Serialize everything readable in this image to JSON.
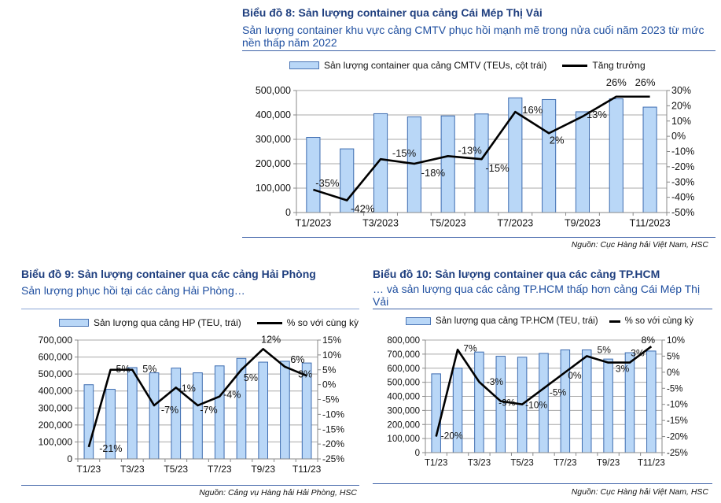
{
  "charts": {
    "c8": {
      "title": "Biểu đồ 8: Sản lượng container qua cảng Cái Mép Thị Vải",
      "subtitle": "Sản lượng container khu vực cảng CMTV phục hồi mạnh mẽ trong nửa cuối năm 2023 từ mức nền thấp năm 2022",
      "legend_bar": "Sản lượng container qua cảng CMTV (TEUs, cột trái)",
      "legend_line": "Tăng trưởng",
      "source": "Nguồn: Cục Hàng hải Việt Nam, HSC"
    },
    "c9": {
      "title": "Biểu đồ 9: Sản lượng container qua các cảng Hải Phòng",
      "subtitle": "Sản lượng phục hồi tại các cảng Hải Phòng…",
      "legend_bar": "Sản lượng qua cảng HP (TEU, trái)",
      "legend_line": "% so với cùng kỳ",
      "source": "Nguồn: Cảng vụ Hàng hải Hải Phòng, HSC"
    },
    "c10": {
      "title": "Biểu đồ 10: Sản lượng container qua các cảng  TP.HCM",
      "subtitle": "… và sản lượng qua các cảng  TP.HCM thấp hơn  cảng Cái Mép Thị Vải",
      "legend_bar": "Sản lượng qua cảng TP.HCM (TEU, trái)",
      "legend_line": "% so với cùng kỳ",
      "source": "Nguồn: Cục Hàng hải Việt Nam, HSC"
    }
  },
  "chart_data": [
    {
      "type": "bar",
      "title": "Biểu đồ 8: Sản lượng container qua cảng Cái Mép Thị Vải",
      "categories": [
        "T1/2023",
        "T2/2023",
        "T3/2023",
        "T4/2023",
        "T5/2023",
        "T6/2023",
        "T7/2023",
        "T8/2023",
        "T9/2023",
        "T10/2023",
        "T11/2023"
      ],
      "x_tick_labels": [
        "T1/2023",
        "",
        "T3/2023",
        "",
        "T5/2023",
        "",
        "T7/2023",
        "",
        "T9/2023",
        "",
        "T11/2023"
      ],
      "series": [
        {
          "name": "Sản lượng container qua cảng CMTV (TEUs, cột trái)",
          "type": "bar",
          "axis": "left",
          "values": [
            308000,
            261000,
            405000,
            392000,
            396000,
            404000,
            470000,
            463000,
            413000,
            466000,
            432000
          ]
        },
        {
          "name": "Tăng trưởng",
          "type": "line",
          "axis": "right",
          "values": [
            -35,
            -42,
            -15,
            -18,
            -13,
            -15,
            16,
            2,
            13,
            26,
            26
          ],
          "data_labels": [
            "-35%",
            "-42%",
            "-15%",
            "-18%",
            "-13%",
            "-15%",
            "16%",
            "2%",
            "13%",
            "26%",
            "26%"
          ]
        }
      ],
      "ylim_left": [
        0,
        500000
      ],
      "yticks_left": [
        "0",
        "100,000",
        "200,000",
        "300,000",
        "400,000",
        "500,000"
      ],
      "ylim_right": [
        -50,
        30
      ],
      "yticks_right": [
        "-50%",
        "-40%",
        "-30%",
        "-20%",
        "-10%",
        "0%",
        "10%",
        "20%",
        "30%"
      ],
      "grid": true,
      "legend": "top"
    },
    {
      "type": "bar",
      "title": "Biểu đồ 9: Sản lượng container qua các cảng Hải Phòng",
      "categories": [
        "T1/23",
        "T2/23",
        "T3/23",
        "T4/23",
        "T5/23",
        "T6/23",
        "T7/23",
        "T8/23",
        "T9/23",
        "T10/23",
        "T11/23"
      ],
      "x_tick_labels": [
        "T1/23",
        "",
        "T3/23",
        "",
        "T5/23",
        "",
        "T7/23",
        "",
        "T9/23",
        "",
        "T11/23"
      ],
      "series": [
        {
          "name": "Sản lượng qua cảng HP (TEU, trái)",
          "type": "bar",
          "axis": "left",
          "values": [
            437000,
            410000,
            538000,
            507000,
            535000,
            507000,
            548000,
            592000,
            570000,
            575000,
            565000
          ]
        },
        {
          "name": "% so với cùng kỳ",
          "type": "line",
          "axis": "right",
          "values": [
            -21,
            5,
            5,
            -7,
            -1,
            -7,
            -4,
            5,
            12,
            6,
            3
          ],
          "data_labels": [
            "-21%",
            "5%",
            "5%",
            "-7%",
            "-1%",
            "-7%",
            "-4%",
            "5%",
            "12%",
            "6%",
            "3%"
          ]
        }
      ],
      "ylim_left": [
        0,
        700000
      ],
      "yticks_left": [
        "0",
        "100,000",
        "200,000",
        "300,000",
        "400,000",
        "500,000",
        "600,000",
        "700,000"
      ],
      "ylim_right": [
        -25,
        15
      ],
      "yticks_right": [
        "-25%",
        "-20%",
        "-15%",
        "-10%",
        "-5%",
        "0%",
        "5%",
        "10%",
        "15%"
      ],
      "grid": true,
      "legend": "top"
    },
    {
      "type": "bar",
      "title": "Biểu đồ 10: Sản lượng container qua các cảng  TP.HCM",
      "categories": [
        "T1/23",
        "T2/23",
        "T3/23",
        "T4/23",
        "T5/23",
        "T6/23",
        "T7/23",
        "T8/23",
        "T9/23",
        "T10/23",
        "T11/23"
      ],
      "x_tick_labels": [
        "T1/23",
        "",
        "T3/23",
        "",
        "T5/23",
        "",
        "T7/23",
        "",
        "T9/23",
        "",
        "T11/23"
      ],
      "series": [
        {
          "name": "Sản lượng qua cảng TP.HCM (TEU, trái)",
          "type": "bar",
          "axis": "left",
          "values": [
            560000,
            600000,
            715000,
            685000,
            678000,
            705000,
            730000,
            730000,
            665000,
            710000,
            722000
          ]
        },
        {
          "name": "% so với cùng kỳ",
          "type": "line",
          "axis": "right",
          "values": [
            -20,
            7,
            -3,
            -9,
            -10,
            -5,
            0,
            5,
            3,
            3,
            8
          ],
          "data_labels": [
            "-20%",
            "7%",
            "-3%",
            "-9%",
            "-10%",
            "-5%",
            "0%",
            "5%",
            "3%",
            "3%",
            "8%"
          ]
        }
      ],
      "ylim_left": [
        0,
        800000
      ],
      "yticks_left": [
        "0",
        "100,000",
        "200,000",
        "300,000",
        "400,000",
        "500,000",
        "600,000",
        "700,000",
        "800,000"
      ],
      "ylim_right": [
        -25,
        10
      ],
      "yticks_right": [
        "-25%",
        "-20%",
        "-15%",
        "-10%",
        "-5%",
        "0%",
        "5%",
        "10%"
      ],
      "grid": true,
      "legend": "top"
    }
  ]
}
